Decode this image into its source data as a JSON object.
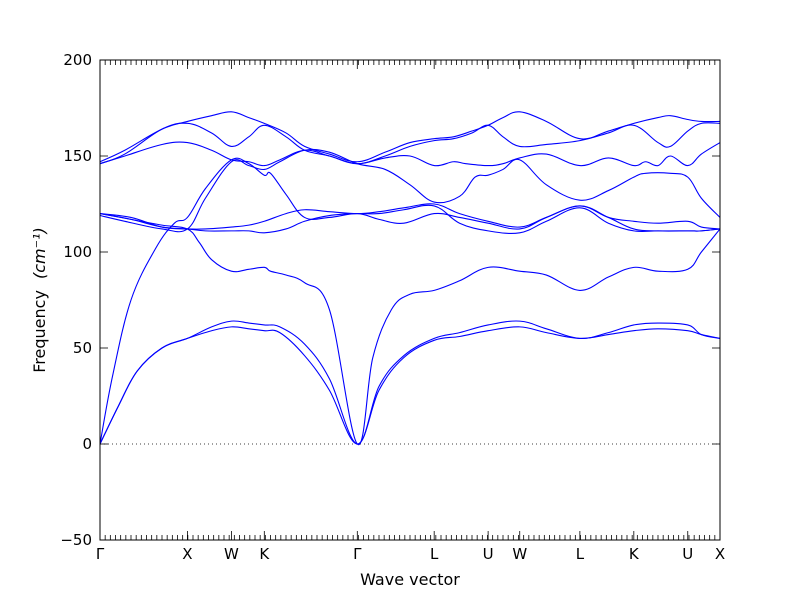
{
  "chart_data": {
    "type": "line",
    "title": "",
    "xlabel": "Wave vector",
    "ylabel": "Frequency",
    "ylabel_unit": "(cm⁻¹)",
    "ylim": [
      -50,
      200
    ],
    "yticks": [
      -50,
      0,
      50,
      100,
      150,
      200
    ],
    "xlim": [
      0,
      1
    ],
    "xticks": [
      {
        "label": "Γ",
        "pos": 0.0
      },
      {
        "label": "X",
        "pos": 0.141
      },
      {
        "label": "W",
        "pos": 0.212
      },
      {
        "label": "K",
        "pos": 0.265
      },
      {
        "label": "Γ",
        "pos": 0.415
      },
      {
        "label": "L",
        "pos": 0.539
      },
      {
        "label": "U",
        "pos": 0.626
      },
      {
        "label": "W",
        "pos": 0.677
      },
      {
        "label": "L",
        "pos": 0.774
      },
      {
        "label": "K",
        "pos": 0.861
      },
      {
        "label": "U",
        "pos": 0.948
      },
      {
        "label": "X",
        "pos": 1.0
      }
    ],
    "zero_line": true,
    "line_color": "#0000ff",
    "series": [
      {
        "values": [
          [
            0,
            0
          ],
          [
            0.03,
            20
          ],
          [
            0.06,
            38
          ],
          [
            0.1,
            50
          ],
          [
            0.141,
            55
          ],
          [
            0.18,
            59
          ],
          [
            0.212,
            61
          ],
          [
            0.24,
            60
          ],
          [
            0.265,
            59
          ],
          [
            0.29,
            58
          ],
          [
            0.33,
            46
          ],
          [
            0.37,
            28
          ],
          [
            0.415,
            0
          ],
          [
            0.45,
            28
          ],
          [
            0.49,
            45
          ],
          [
            0.539,
            54
          ],
          [
            0.58,
            56
          ],
          [
            0.626,
            59
          ],
          [
            0.677,
            61
          ],
          [
            0.72,
            58
          ],
          [
            0.774,
            55
          ],
          [
            0.82,
            57
          ],
          [
            0.861,
            59
          ],
          [
            0.9,
            60
          ],
          [
            0.948,
            59
          ],
          [
            0.97,
            57
          ],
          [
            1.0,
            55
          ]
        ]
      },
      {
        "values": [
          [
            0,
            0
          ],
          [
            0.03,
            20
          ],
          [
            0.06,
            38
          ],
          [
            0.1,
            50
          ],
          [
            0.141,
            55
          ],
          [
            0.18,
            61
          ],
          [
            0.212,
            64
          ],
          [
            0.24,
            63
          ],
          [
            0.265,
            62
          ],
          [
            0.29,
            61
          ],
          [
            0.33,
            52
          ],
          [
            0.37,
            34
          ],
          [
            0.415,
            0
          ],
          [
            0.45,
            30
          ],
          [
            0.49,
            46
          ],
          [
            0.539,
            55
          ],
          [
            0.58,
            58
          ],
          [
            0.626,
            62
          ],
          [
            0.677,
            64
          ],
          [
            0.72,
            60
          ],
          [
            0.774,
            55
          ],
          [
            0.82,
            58
          ],
          [
            0.861,
            62
          ],
          [
            0.9,
            63
          ],
          [
            0.948,
            62
          ],
          [
            0.97,
            57
          ],
          [
            1.0,
            55
          ]
        ]
      },
      {
        "values": [
          [
            0,
            0
          ],
          [
            0.02,
            35
          ],
          [
            0.05,
            75
          ],
          [
            0.09,
            102
          ],
          [
            0.12,
            115
          ],
          [
            0.141,
            118
          ],
          [
            0.17,
            133
          ],
          [
            0.212,
            148
          ],
          [
            0.24,
            146
          ],
          [
            0.265,
            140
          ],
          [
            0.275,
            141
          ],
          [
            0.3,
            130
          ],
          [
            0.33,
            118
          ],
          [
            0.37,
            118
          ],
          [
            0.415,
            120
          ],
          [
            0.45,
            117
          ],
          [
            0.49,
            115
          ],
          [
            0.539,
            120
          ],
          [
            0.58,
            118
          ],
          [
            0.626,
            115
          ],
          [
            0.677,
            112
          ],
          [
            0.72,
            118
          ],
          [
            0.774,
            124
          ],
          [
            0.82,
            118
          ],
          [
            0.861,
            112
          ],
          [
            0.9,
            111
          ],
          [
            0.948,
            111
          ],
          [
            0.97,
            111
          ],
          [
            1.0,
            112
          ]
        ]
      },
      {
        "values": [
          [
            0,
            120
          ],
          [
            0.05,
            118
          ],
          [
            0.1,
            113
          ],
          [
            0.141,
            112
          ],
          [
            0.17,
            112
          ],
          [
            0.212,
            113
          ],
          [
            0.24,
            114
          ],
          [
            0.265,
            116
          ],
          [
            0.3,
            120
          ],
          [
            0.33,
            122
          ],
          [
            0.37,
            121
          ],
          [
            0.415,
            120
          ],
          [
            0.45,
            121
          ],
          [
            0.49,
            123
          ],
          [
            0.539,
            125
          ],
          [
            0.58,
            120
          ],
          [
            0.626,
            116
          ],
          [
            0.677,
            113
          ],
          [
            0.72,
            118
          ],
          [
            0.774,
            124
          ],
          [
            0.82,
            118
          ],
          [
            0.861,
            116
          ],
          [
            0.9,
            115
          ],
          [
            0.948,
            116
          ],
          [
            0.97,
            113
          ],
          [
            1.0,
            112
          ]
        ]
      },
      {
        "values": [
          [
            0,
            120
          ],
          [
            0.05,
            117
          ],
          [
            0.1,
            113
          ],
          [
            0.141,
            112
          ],
          [
            0.17,
            111
          ],
          [
            0.212,
            111
          ],
          [
            0.24,
            111
          ],
          [
            0.265,
            110
          ],
          [
            0.3,
            112
          ],
          [
            0.33,
            116
          ],
          [
            0.37,
            119
          ],
          [
            0.415,
            120
          ],
          [
            0.45,
            120
          ],
          [
            0.49,
            122
          ],
          [
            0.539,
            124
          ],
          [
            0.58,
            115
          ],
          [
            0.626,
            111
          ],
          [
            0.677,
            110
          ],
          [
            0.72,
            116
          ],
          [
            0.774,
            123
          ],
          [
            0.82,
            115
          ],
          [
            0.861,
            111
          ],
          [
            0.9,
            111
          ],
          [
            0.948,
            111
          ],
          [
            0.97,
            111
          ],
          [
            1.0,
            112
          ]
        ]
      },
      {
        "values": [
          [
            0,
            120
          ],
          [
            0.05,
            117
          ],
          [
            0.1,
            114
          ],
          [
            0.141,
            112
          ],
          [
            0.16,
            105
          ],
          [
            0.18,
            96
          ],
          [
            0.212,
            90
          ],
          [
            0.24,
            91
          ],
          [
            0.265,
            92
          ],
          [
            0.275,
            90
          ],
          [
            0.3,
            88
          ],
          [
            0.33,
            84
          ],
          [
            0.37,
            70
          ],
          [
            0.415,
            0
          ],
          [
            0.44,
            45
          ],
          [
            0.47,
            70
          ],
          [
            0.5,
            78
          ],
          [
            0.539,
            80
          ],
          [
            0.58,
            85
          ],
          [
            0.626,
            92
          ],
          [
            0.677,
            90
          ],
          [
            0.72,
            88
          ],
          [
            0.774,
            80
          ],
          [
            0.82,
            87
          ],
          [
            0.861,
            92
          ],
          [
            0.9,
            90
          ],
          [
            0.948,
            91
          ],
          [
            0.97,
            100
          ],
          [
            1.0,
            112
          ]
        ]
      },
      {
        "values": [
          [
            0,
            146
          ],
          [
            0.04,
            150
          ],
          [
            0.1,
            156
          ],
          [
            0.141,
            157
          ],
          [
            0.18,
            153
          ],
          [
            0.212,
            148
          ],
          [
            0.24,
            147
          ],
          [
            0.265,
            145
          ],
          [
            0.29,
            148
          ],
          [
            0.33,
            153
          ],
          [
            0.37,
            150
          ],
          [
            0.415,
            146
          ],
          [
            0.46,
            149
          ],
          [
            0.5,
            150
          ],
          [
            0.539,
            145
          ],
          [
            0.57,
            147
          ],
          [
            0.59,
            146
          ],
          [
            0.626,
            145
          ],
          [
            0.65,
            146
          ],
          [
            0.677,
            149
          ],
          [
            0.72,
            151
          ],
          [
            0.774,
            145
          ],
          [
            0.82,
            149
          ],
          [
            0.861,
            145
          ],
          [
            0.88,
            147
          ],
          [
            0.9,
            145
          ],
          [
            0.92,
            150
          ],
          [
            0.948,
            145
          ],
          [
            0.97,
            151
          ],
          [
            1.0,
            157
          ]
        ]
      },
      {
        "values": [
          [
            0,
            146
          ],
          [
            0.04,
            151
          ],
          [
            0.1,
            164
          ],
          [
            0.141,
            167
          ],
          [
            0.18,
            162
          ],
          [
            0.212,
            155
          ],
          [
            0.24,
            160
          ],
          [
            0.265,
            166
          ],
          [
            0.3,
            160
          ],
          [
            0.33,
            153
          ],
          [
            0.37,
            150
          ],
          [
            0.415,
            146
          ],
          [
            0.46,
            150
          ],
          [
            0.5,
            155
          ],
          [
            0.539,
            158
          ],
          [
            0.57,
            159
          ],
          [
            0.6,
            162
          ],
          [
            0.626,
            166
          ],
          [
            0.65,
            160
          ],
          [
            0.677,
            155
          ],
          [
            0.72,
            156
          ],
          [
            0.774,
            158
          ],
          [
            0.82,
            162
          ],
          [
            0.861,
            166
          ],
          [
            0.9,
            157
          ],
          [
            0.92,
            155
          ],
          [
            0.948,
            163
          ],
          [
            0.97,
            167
          ],
          [
            1.0,
            167
          ]
        ]
      },
      {
        "values": [
          [
            0,
            147
          ],
          [
            0.04,
            153
          ],
          [
            0.1,
            164
          ],
          [
            0.141,
            168
          ],
          [
            0.18,
            171
          ],
          [
            0.212,
            173
          ],
          [
            0.24,
            170
          ],
          [
            0.265,
            167
          ],
          [
            0.3,
            162
          ],
          [
            0.33,
            155
          ],
          [
            0.37,
            151
          ],
          [
            0.415,
            147
          ],
          [
            0.46,
            152
          ],
          [
            0.5,
            157
          ],
          [
            0.539,
            159
          ],
          [
            0.57,
            160
          ],
          [
            0.6,
            163
          ],
          [
            0.626,
            166
          ],
          [
            0.65,
            170
          ],
          [
            0.677,
            173
          ],
          [
            0.72,
            168
          ],
          [
            0.774,
            159
          ],
          [
            0.82,
            163
          ],
          [
            0.861,
            167
          ],
          [
            0.9,
            170
          ],
          [
            0.92,
            171
          ],
          [
            0.948,
            169
          ],
          [
            0.97,
            168
          ],
          [
            1.0,
            168
          ]
        ]
      },
      {
        "values": [
          [
            0,
            119
          ],
          [
            0.04,
            116
          ],
          [
            0.1,
            112
          ],
          [
            0.141,
            112
          ],
          [
            0.17,
            128
          ],
          [
            0.212,
            147
          ],
          [
            0.24,
            145
          ],
          [
            0.265,
            143
          ],
          [
            0.29,
            147
          ],
          [
            0.33,
            153
          ],
          [
            0.37,
            152
          ],
          [
            0.415,
            146
          ],
          [
            0.46,
            143
          ],
          [
            0.5,
            135
          ],
          [
            0.539,
            126
          ],
          [
            0.58,
            129
          ],
          [
            0.605,
            139
          ],
          [
            0.626,
            140
          ],
          [
            0.65,
            143
          ],
          [
            0.677,
            148
          ],
          [
            0.72,
            135
          ],
          [
            0.774,
            127
          ],
          [
            0.82,
            132
          ],
          [
            0.861,
            139
          ],
          [
            0.88,
            141
          ],
          [
            0.92,
            141
          ],
          [
            0.948,
            139
          ],
          [
            0.97,
            128
          ],
          [
            1.0,
            118
          ]
        ]
      }
    ]
  }
}
